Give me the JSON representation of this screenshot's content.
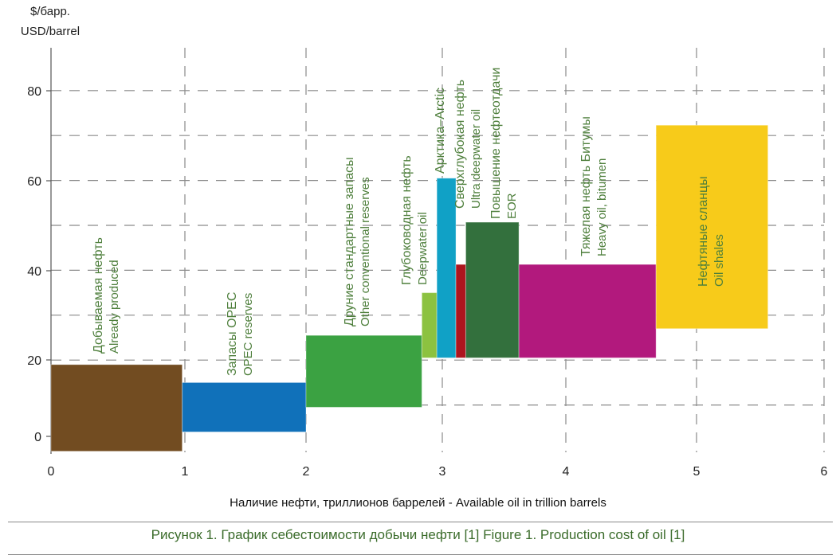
{
  "chart_data": {
    "type": "bar",
    "subtype": "variable-width cost-supply blocks",
    "title": "",
    "ylabel_ru": "$/барр.",
    "ylabel_en": "USD/barrel",
    "xlabel": "Наличие нефти, триллионов баррелей  -  Available oil in trillion barrels",
    "xlim": [
      0,
      6
    ],
    "ylim": [
      -3,
      90
    ],
    "x_ticks": [
      0,
      1,
      2,
      3,
      4,
      5,
      6
    ],
    "y_ticks": [
      0,
      20,
      40,
      60,
      80
    ],
    "y_grid": [
      10,
      20,
      30,
      40,
      50,
      60,
      70,
      80
    ],
    "grid": true,
    "series": [
      {
        "name_ru": "Добываемая нефть",
        "name_en": "Already produced",
        "x0": 0.0,
        "x1": 0.98,
        "y0": -0.3,
        "y1": 19,
        "color": "#724c21"
      },
      {
        "name_ru": "Запасы OPEC",
        "name_en": "OPEC reserves",
        "x0": 0.98,
        "x1": 2.0,
        "y0": 4,
        "y1": 15,
        "color": "#1071ba"
      },
      {
        "name_ru": "Друние стандартные запасы",
        "name_en": "Other conventional reserves",
        "x0": 2.0,
        "x1": 2.85,
        "y0": 9.5,
        "y1": 25.5,
        "color": "#3ba242"
      },
      {
        "name_ru": "Глубоководная нефть",
        "name_en": "Deepwater oil",
        "x0": 2.85,
        "x1": 2.96,
        "y0": 20.5,
        "y1": 35,
        "color": "#8cc240"
      },
      {
        "name_ru": "Арктика",
        "name_en": "Arctic",
        "x0": 2.96,
        "x1": 3.11,
        "y0": 20.5,
        "y1": 60.5,
        "color": "#10a1c6"
      },
      {
        "name_ru": "Сверхглубокая нефть",
        "name_en": "Ultra deepwater oil",
        "x0": 3.11,
        "x1": 3.19,
        "y0": 20.5,
        "y1": 41.3,
        "color": "#ad151e"
      },
      {
        "name_ru": "Повышение нефтеотдачи",
        "name_en": "EOR",
        "x0": 3.19,
        "x1": 3.62,
        "y0": 20.5,
        "y1": 50.7,
        "color": "#33703d"
      },
      {
        "name_ru": "Тяжелая нефть Битумы",
        "name_en": "Heavy oil, bitumen",
        "x0": 3.62,
        "x1": 4.69,
        "y0": 20.5,
        "y1": 41.3,
        "color": "#b2197d"
      },
      {
        "name_ru": "Нефтяные сланцы",
        "name_en": "Oil shales",
        "x0": 4.69,
        "x1": 5.56,
        "y0": 27,
        "y1": 72.3,
        "color": "#f7cb1a"
      }
    ],
    "label_color": "#4e7f3c"
  },
  "caption": "Рисунок 1. График себестоимости добычи нефти [1]   Figure 1. Production cost of oil [1]"
}
